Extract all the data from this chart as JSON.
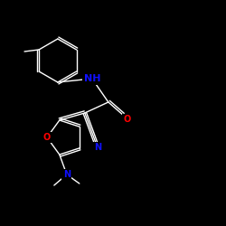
{
  "background_color": "#000000",
  "bond_color": "#ffffff",
  "atom_colors": {
    "N": "#1010ff",
    "O": "#ff0000",
    "C": "#ffffff"
  },
  "figsize": [
    2.5,
    2.5
  ],
  "dpi": 100,
  "xlim": [
    0,
    250
  ],
  "ylim": [
    0,
    250
  ]
}
